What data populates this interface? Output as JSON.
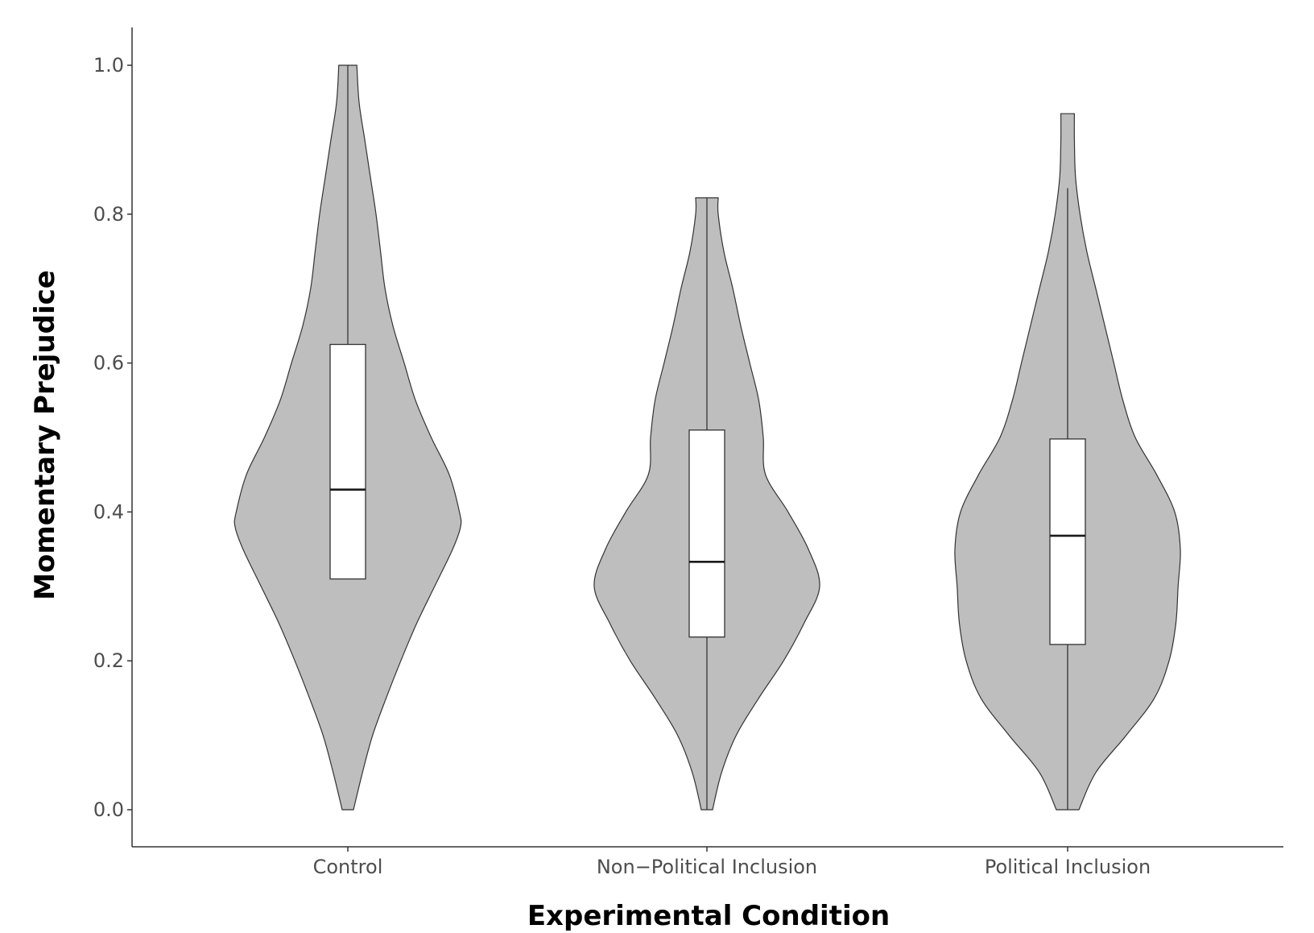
{
  "chart_data": {
    "type": "violin",
    "xlabel": "Experimental Condition",
    "ylabel": "Momentary Prejudice",
    "ylim": [
      -0.05,
      1.05
    ],
    "y_ticks": [
      0.0,
      0.2,
      0.4,
      0.6,
      0.8,
      1.0
    ],
    "y_tick_labels": [
      "0.0",
      "0.2",
      "0.4",
      "0.6",
      "0.8",
      "1.0"
    ],
    "grid": false,
    "legend": "none",
    "categories": [
      "Control",
      "Non−Political Inclusion",
      "Political Inclusion"
    ],
    "colors": {
      "violin_fill": "#bebebe",
      "outline": "#333333",
      "box_fill": "#ffffff",
      "axis": "#333333"
    },
    "groups": [
      {
        "name": "Control",
        "box": {
          "lower": 0.31,
          "q1": 0.31,
          "median": 0.43,
          "q3": 0.625,
          "upper": 1.0,
          "min": 0.0,
          "max": 1.0
        },
        "density": [
          [
            0.0,
            0.05
          ],
          [
            0.05,
            0.13
          ],
          [
            0.1,
            0.22
          ],
          [
            0.15,
            0.34
          ],
          [
            0.2,
            0.47
          ],
          [
            0.25,
            0.61
          ],
          [
            0.3,
            0.77
          ],
          [
            0.35,
            0.93
          ],
          [
            0.38,
            1.0
          ],
          [
            0.4,
            0.99
          ],
          [
            0.45,
            0.9
          ],
          [
            0.5,
            0.74
          ],
          [
            0.55,
            0.6
          ],
          [
            0.6,
            0.5
          ],
          [
            0.65,
            0.4
          ],
          [
            0.7,
            0.33
          ],
          [
            0.75,
            0.29
          ],
          [
            0.8,
            0.25
          ],
          [
            0.85,
            0.2
          ],
          [
            0.9,
            0.15
          ],
          [
            0.95,
            0.1
          ],
          [
            1.0,
            0.08
          ]
        ]
      },
      {
        "name": "Non−Political Inclusion",
        "box": {
          "lower": 0.0,
          "q1": 0.232,
          "median": 0.333,
          "q3": 0.51,
          "upper": 0.822,
          "min": 0.0,
          "max": 0.822
        },
        "density": [
          [
            0.0,
            0.05
          ],
          [
            0.05,
            0.13
          ],
          [
            0.1,
            0.26
          ],
          [
            0.15,
            0.46
          ],
          [
            0.2,
            0.68
          ],
          [
            0.25,
            0.86
          ],
          [
            0.3,
            1.0
          ],
          [
            0.35,
            0.9
          ],
          [
            0.4,
            0.72
          ],
          [
            0.45,
            0.52
          ],
          [
            0.5,
            0.5
          ],
          [
            0.55,
            0.46
          ],
          [
            0.6,
            0.38
          ],
          [
            0.65,
            0.3
          ],
          [
            0.7,
            0.23
          ],
          [
            0.75,
            0.15
          ],
          [
            0.8,
            0.1
          ],
          [
            0.822,
            0.1
          ]
        ]
      },
      {
        "name": "Political Inclusion",
        "box": {
          "lower": 0.0,
          "q1": 0.222,
          "median": 0.368,
          "q3": 0.498,
          "upper": 0.835,
          "min": 0.0,
          "max": 0.935
        },
        "density": [
          [
            0.0,
            0.1
          ],
          [
            0.05,
            0.25
          ],
          [
            0.1,
            0.52
          ],
          [
            0.15,
            0.77
          ],
          [
            0.2,
            0.9
          ],
          [
            0.25,
            0.96
          ],
          [
            0.3,
            0.98
          ],
          [
            0.35,
            1.0
          ],
          [
            0.4,
            0.95
          ],
          [
            0.45,
            0.79
          ],
          [
            0.5,
            0.6
          ],
          [
            0.55,
            0.49
          ],
          [
            0.6,
            0.41
          ],
          [
            0.65,
            0.33
          ],
          [
            0.7,
            0.25
          ],
          [
            0.75,
            0.17
          ],
          [
            0.8,
            0.11
          ],
          [
            0.85,
            0.07
          ],
          [
            0.9,
            0.06
          ],
          [
            0.935,
            0.06
          ]
        ]
      }
    ]
  }
}
